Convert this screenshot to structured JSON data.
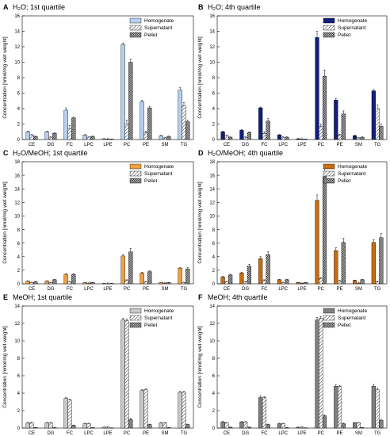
{
  "figure": {
    "ylabel": "Concentration [nmol/mg wet weight]"
  },
  "chart_data": [
    {
      "type": "bar",
      "panel_letter": "A",
      "title": "H₂O; 1st quartile",
      "ylabel": "Concentration [nmol/mg wet weight]",
      "ylim": [
        0,
        16
      ],
      "yticks": [
        0,
        2,
        4,
        6,
        8,
        10,
        12,
        14,
        16
      ],
      "grid": false,
      "legend": "top-right",
      "color": "#b4cff0",
      "categories": [
        "CE",
        "DG",
        "FC",
        "LPC",
        "LPE",
        "PC",
        "PE",
        "SM",
        "TG"
      ],
      "series": [
        {
          "name": "Homogenate",
          "values": [
            1.0,
            1.0,
            3.8,
            0.6,
            0.1,
            12.3,
            4.9,
            0.5,
            6.4
          ],
          "errors": [
            0.1,
            0.1,
            0.3,
            0.05,
            0.02,
            0.2,
            0.2,
            0.05,
            0.3
          ]
        },
        {
          "name": "Supernatant",
          "values": [
            0.6,
            0.3,
            1.4,
            0.3,
            0.05,
            2.0,
            0.9,
            0.2,
            4.4
          ],
          "errors": [
            0.05,
            0.05,
            0.4,
            0.05,
            0.02,
            0.5,
            0.2,
            0.05,
            0.4
          ]
        },
        {
          "name": "Pellet",
          "values": [
            0.4,
            0.8,
            2.8,
            0.4,
            0.05,
            10.0,
            4.1,
            0.4,
            2.3
          ],
          "errors": [
            0.05,
            0.1,
            0.1,
            0.05,
            0.02,
            0.4,
            0.2,
            0.05,
            0.2
          ]
        }
      ]
    },
    {
      "type": "bar",
      "panel_letter": "B",
      "title": "H₂O; 4th quartile",
      "ylabel": "Concentration [nmol/mg wet weight]",
      "ylim": [
        0,
        16
      ],
      "yticks": [
        0,
        2,
        4,
        6,
        8,
        10,
        12,
        14,
        16
      ],
      "grid": false,
      "legend": "top-right",
      "color": "#10207a",
      "categories": [
        "CE",
        "DG",
        "FC",
        "LPC",
        "LPE",
        "PC",
        "PE",
        "SM",
        "TG"
      ],
      "series": [
        {
          "name": "Homogenate",
          "values": [
            1.0,
            1.2,
            4.1,
            0.6,
            0.1,
            13.2,
            5.1,
            0.5,
            6.3
          ],
          "errors": [
            0.1,
            0.1,
            0.1,
            0.05,
            0.02,
            0.8,
            0.2,
            0.05,
            0.2
          ]
        },
        {
          "name": "Supernatant",
          "values": [
            0.5,
            0.3,
            0.8,
            0.3,
            0.05,
            1.7,
            0.6,
            0.2,
            4.0
          ],
          "errors": [
            0.05,
            0.05,
            0.2,
            0.05,
            0.02,
            0.3,
            0.1,
            0.05,
            0.5
          ]
        },
        {
          "name": "Pellet",
          "values": [
            0.3,
            0.9,
            2.4,
            0.3,
            0.05,
            8.2,
            3.3,
            0.3,
            1.7
          ],
          "errors": [
            0.05,
            0.1,
            0.3,
            0.05,
            0.02,
            0.8,
            0.4,
            0.05,
            0.3
          ]
        }
      ]
    },
    {
      "type": "bar",
      "panel_letter": "C",
      "title": "H₂O/MeOH; 1st quartile",
      "ylabel": "Concentration [nmol/mg wet weight]",
      "ylim": [
        0,
        18
      ],
      "yticks": [
        0,
        2,
        4,
        6,
        8,
        10,
        12,
        14,
        16,
        18
      ],
      "grid": false,
      "legend": "top-right",
      "color": "#f0a040",
      "categories": [
        "CE",
        "DG",
        "FC",
        "LPC",
        "LPE",
        "PC",
        "PE",
        "SM",
        "TG"
      ],
      "series": [
        {
          "name": "Homogenate",
          "values": [
            0.4,
            0.4,
            1.4,
            0.2,
            0.05,
            4.1,
            1.6,
            0.2,
            2.3
          ],
          "errors": [
            0.05,
            0.05,
            0.1,
            0.02,
            0.01,
            0.2,
            0.1,
            0.02,
            0.1
          ]
        },
        {
          "name": "Supernatant",
          "values": [
            0.2,
            0.2,
            0.3,
            0.1,
            0.03,
            0.5,
            0.3,
            0.1,
            0.2
          ],
          "errors": [
            0.03,
            0.03,
            0.05,
            0.02,
            0.01,
            0.1,
            0.05,
            0.02,
            0.03
          ]
        },
        {
          "name": "Pellet",
          "values": [
            0.3,
            0.6,
            1.4,
            0.2,
            0.05,
            4.7,
            1.8,
            0.2,
            2.2
          ],
          "errors": [
            0.05,
            0.05,
            0.1,
            0.02,
            0.01,
            0.5,
            0.1,
            0.02,
            0.2
          ]
        }
      ]
    },
    {
      "type": "bar",
      "panel_letter": "D",
      "title": "H₂O/MeOH; 4th quartile",
      "ylabel": "Concentration [nmol/mg wet weight]",
      "ylim": [
        0,
        18
      ],
      "yticks": [
        0,
        2,
        4,
        6,
        8,
        10,
        12,
        14,
        16,
        18
      ],
      "grid": false,
      "legend": "top-right",
      "color": "#c86c10",
      "categories": [
        "CE",
        "DG",
        "FC",
        "LPC",
        "LPE",
        "PC",
        "PE",
        "SM",
        "TG"
      ],
      "series": [
        {
          "name": "Homogenate",
          "values": [
            1.0,
            1.6,
            3.7,
            0.6,
            0.2,
            12.3,
            4.9,
            0.5,
            6.1
          ],
          "errors": [
            0.1,
            0.1,
            0.3,
            0.05,
            0.02,
            0.8,
            0.4,
            0.05,
            0.4
          ]
        },
        {
          "name": "Supernatant",
          "values": [
            0.3,
            0.3,
            0.5,
            0.2,
            0.05,
            0.8,
            0.4,
            0.1,
            0.3
          ],
          "errors": [
            0.05,
            0.05,
            0.1,
            0.02,
            0.01,
            0.1,
            0.1,
            0.02,
            0.05
          ]
        },
        {
          "name": "Pellet",
          "values": [
            1.3,
            2.6,
            4.3,
            0.6,
            0.2,
            15.8,
            6.1,
            0.6,
            6.8
          ],
          "errors": [
            0.1,
            0.3,
            0.4,
            0.05,
            0.02,
            1.6,
            0.6,
            0.05,
            0.6
          ]
        }
      ]
    },
    {
      "type": "bar",
      "panel_letter": "E",
      "title": "MeOH; 1st quartile",
      "ylabel": "Concentration [nmol/mg wet weight]",
      "ylim": [
        0,
        14
      ],
      "yticks": [
        0,
        2,
        4,
        6,
        8,
        10,
        12,
        14
      ],
      "grid": false,
      "legend": "top-right",
      "color": "#c8c8c8",
      "categories": [
        "CE",
        "DG",
        "FC",
        "LPC",
        "LPE",
        "PC",
        "PE",
        "SM",
        "TG"
      ],
      "series": [
        {
          "name": "Homogenate",
          "values": [
            0.6,
            0.6,
            3.4,
            0.5,
            0.1,
            12.4,
            4.3,
            0.6,
            4.1
          ],
          "errors": [
            0.05,
            0.05,
            0.1,
            0.05,
            0.01,
            0.2,
            0.1,
            0.05,
            0.1
          ]
        },
        {
          "name": "Supernatant",
          "values": [
            0.6,
            0.6,
            3.2,
            0.5,
            0.1,
            12.3,
            4.4,
            0.6,
            4.1
          ],
          "errors": [
            0.05,
            0.05,
            0.1,
            0.05,
            0.01,
            0.2,
            0.1,
            0.05,
            0.1
          ]
        },
        {
          "name": "Pellet",
          "values": [
            0.05,
            0.05,
            0.3,
            0.05,
            0.02,
            1.0,
            0.4,
            0.05,
            0.4
          ],
          "errors": [
            0.02,
            0.02,
            0.05,
            0.01,
            0.01,
            0.1,
            0.05,
            0.01,
            0.05
          ]
        }
      ]
    },
    {
      "type": "bar",
      "panel_letter": "F",
      "title": "MeOH; 4th quartile",
      "ylabel": "Concentration [nmol/mg wet weight]",
      "ylim": [
        0,
        14
      ],
      "yticks": [
        0,
        2,
        4,
        6,
        8,
        10,
        12,
        14
      ],
      "grid": false,
      "legend": "top-right",
      "color": "#808080",
      "categories": [
        "CE",
        "DG",
        "FC",
        "LPC",
        "LPE",
        "PC",
        "PE",
        "SM",
        "TG"
      ],
      "series": [
        {
          "name": "Homogenate",
          "values": [
            0.7,
            0.7,
            3.5,
            0.5,
            0.1,
            12.4,
            4.8,
            0.6,
            4.8
          ],
          "errors": [
            0.05,
            0.05,
            0.2,
            0.05,
            0.01,
            0.3,
            0.2,
            0.05,
            0.2
          ]
        },
        {
          "name": "Supernatant",
          "values": [
            0.6,
            0.7,
            3.5,
            0.5,
            0.1,
            12.6,
            4.8,
            0.6,
            4.4
          ],
          "errors": [
            0.05,
            0.05,
            0.1,
            0.05,
            0.01,
            0.2,
            0.1,
            0.05,
            0.2
          ]
        },
        {
          "name": "Pellet",
          "values": [
            0.1,
            0.1,
            0.4,
            0.05,
            0.02,
            1.4,
            0.5,
            0.05,
            0.9
          ],
          "errors": [
            0.02,
            0.02,
            0.05,
            0.01,
            0.01,
            0.1,
            0.05,
            0.01,
            0.1
          ]
        }
      ]
    }
  ]
}
